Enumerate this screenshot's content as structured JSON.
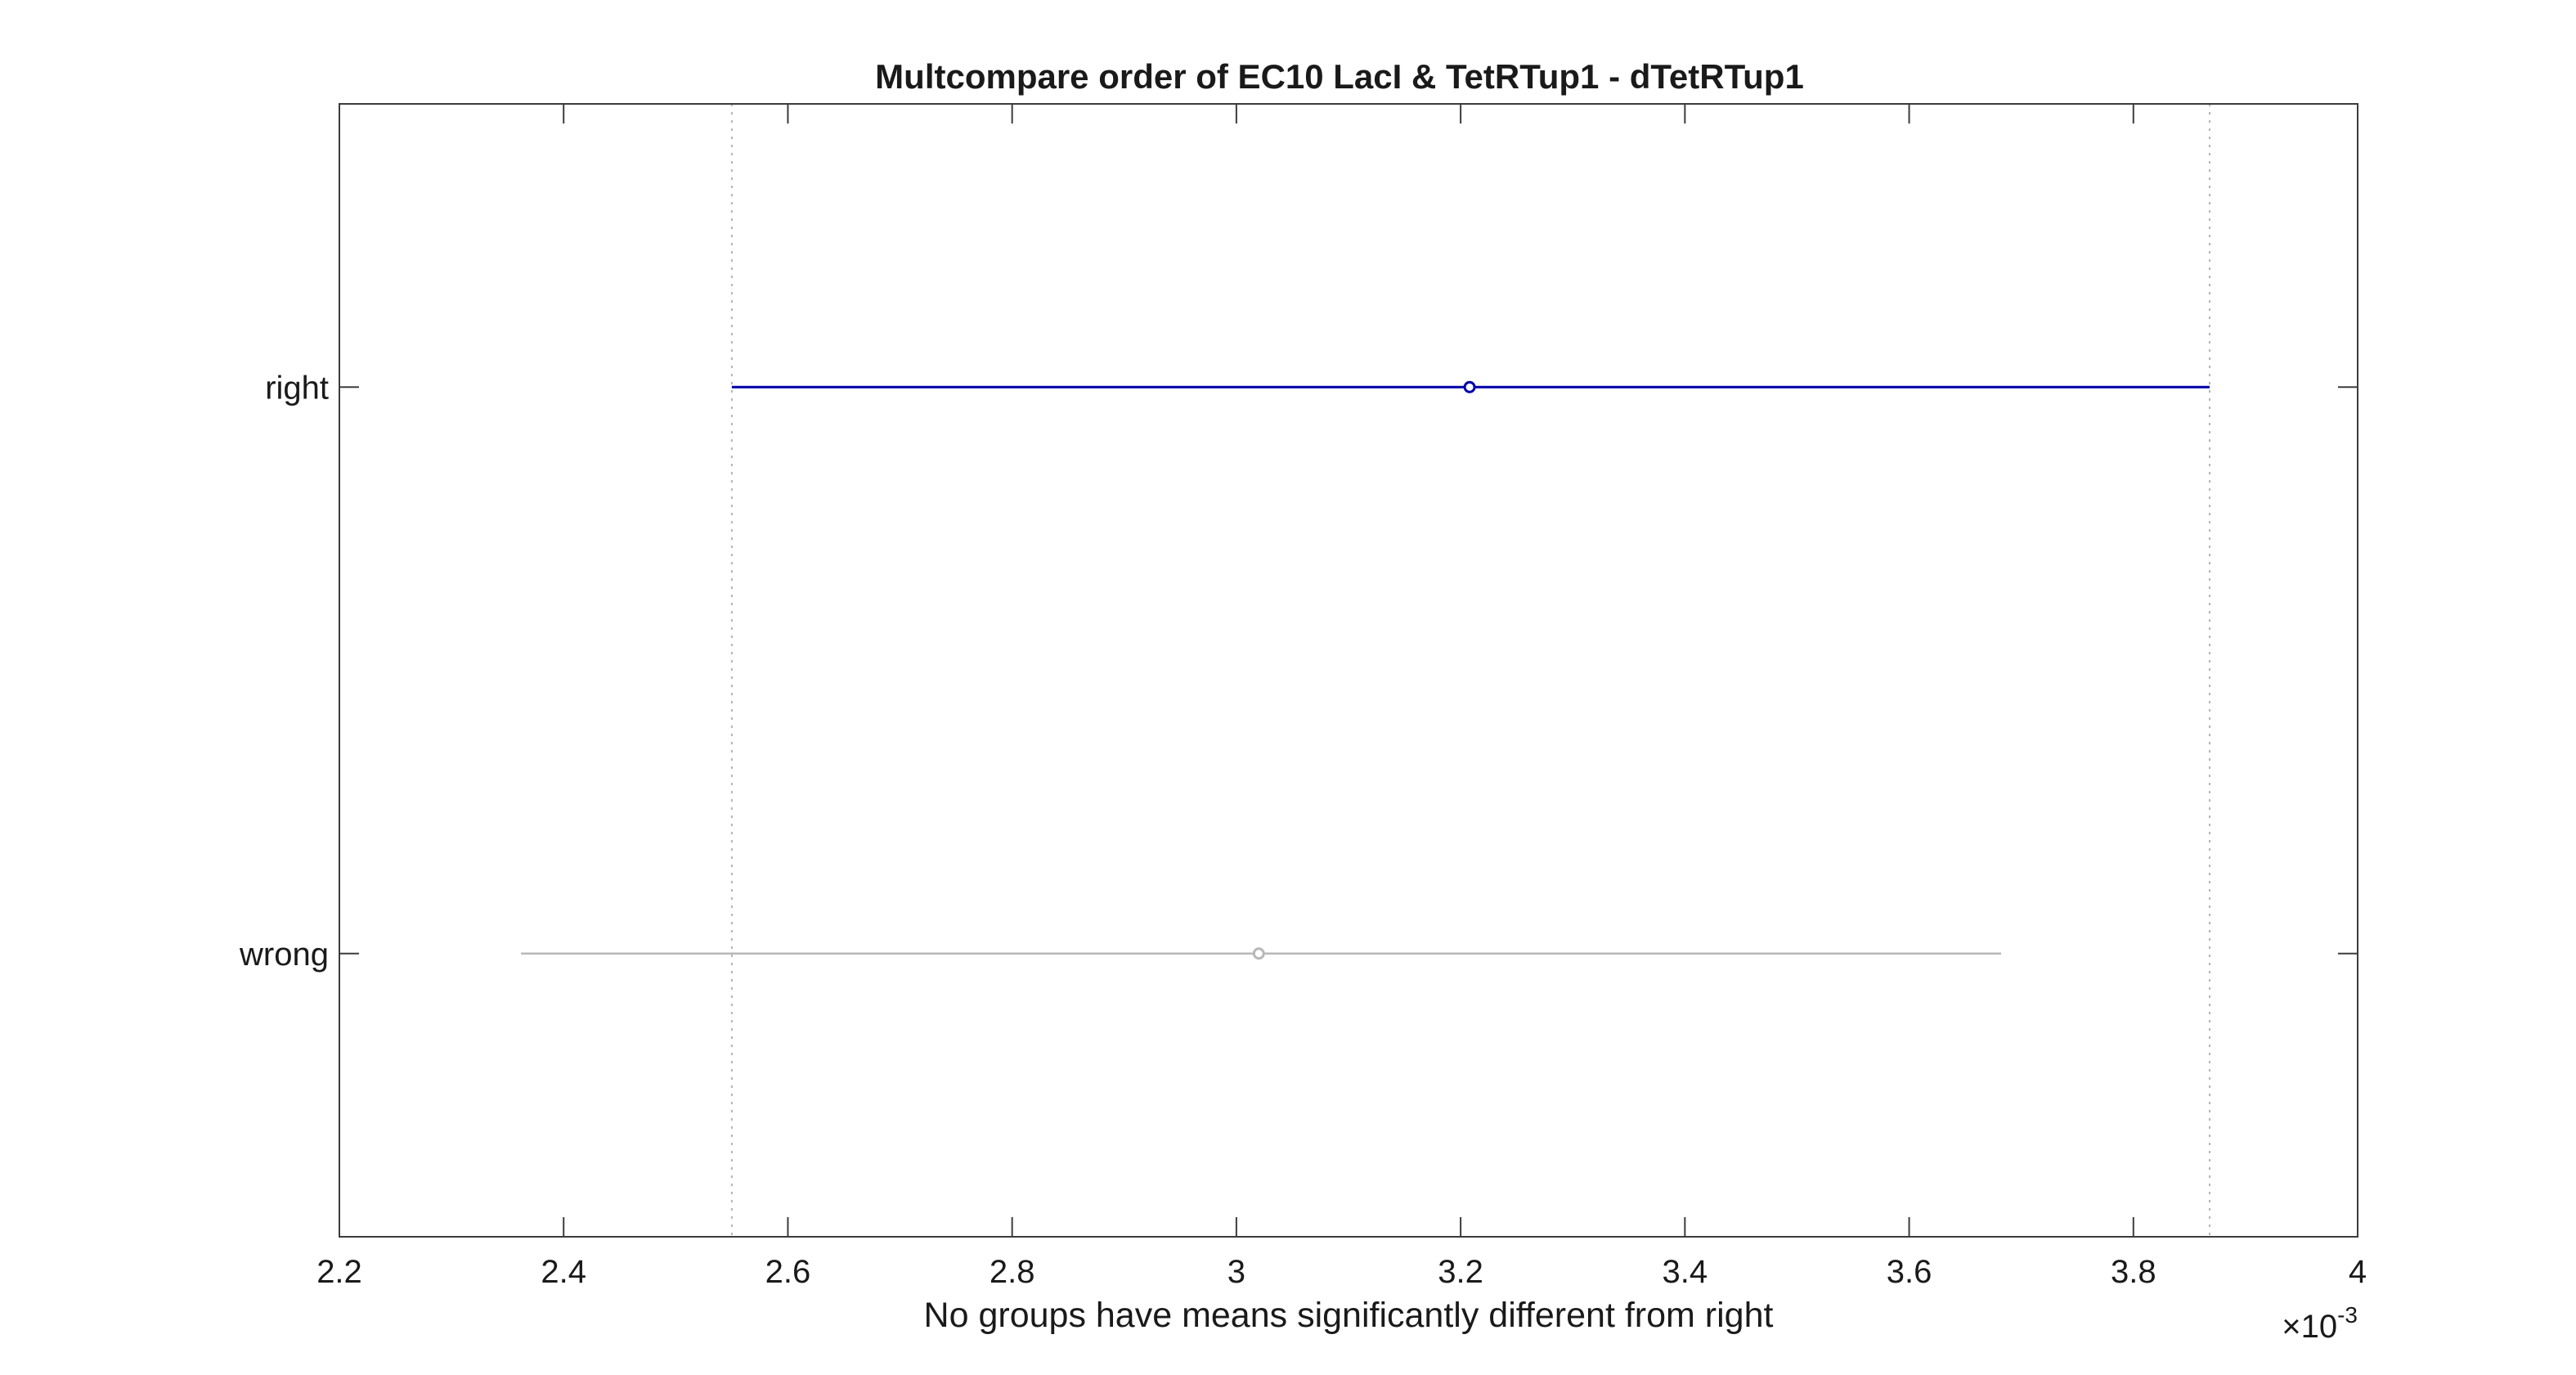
{
  "colors": {
    "highlight": "#0000aa",
    "other": "#b8b8b8",
    "reference_line": "#b4b4b4",
    "axis": "#3c3c3c",
    "text": "#1a1a1a"
  },
  "chart_data": {
    "type": "multcompare-interval",
    "title": "Multcompare order of EC10 LacI & TetRTup1 - dTetRTup1",
    "xlabel": "No groups have means significantly different from right",
    "ylabel": "",
    "xlim": [
      0.0022,
      0.004
    ],
    "x_ticks": [
      0.0022,
      0.0024,
      0.0026,
      0.0028,
      0.003,
      0.0032,
      0.0034,
      0.0036,
      0.0038,
      0.004
    ],
    "x_tick_labels": [
      "2.2",
      "2.4",
      "2.6",
      "2.8",
      "3",
      "3.2",
      "3.4",
      "3.6",
      "3.8",
      "4"
    ],
    "x_exponent": {
      "base": "×10",
      "power": "-3"
    },
    "grid": false,
    "reference_lines": [
      0.00255,
      0.003868
    ],
    "groups": [
      {
        "label": "right",
        "mean": 0.003208,
        "lower": 0.00255,
        "upper": 0.003868,
        "highlighted": true
      },
      {
        "label": "wrong",
        "mean": 0.00302,
        "lower": 0.002362,
        "upper": 0.003682,
        "highlighted": false
      }
    ]
  }
}
